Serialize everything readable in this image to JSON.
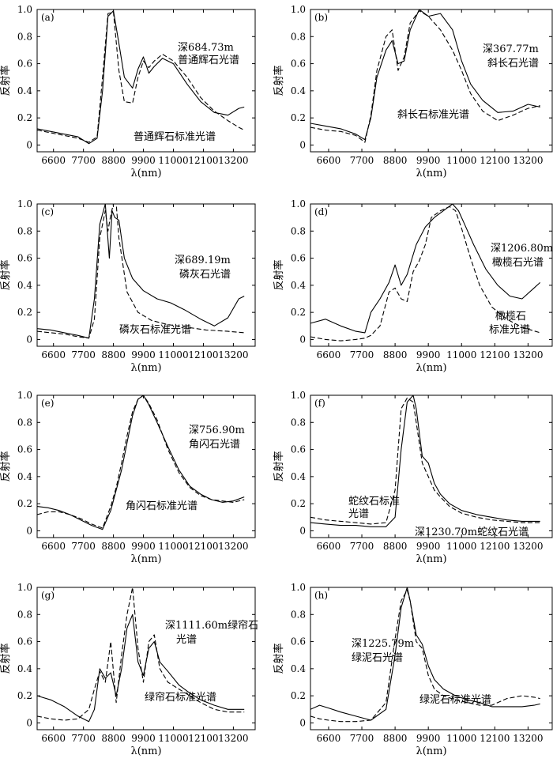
{
  "figure": {
    "x_ticks": [
      "6600",
      "7700",
      "8800",
      "9900",
      "11000",
      "12100",
      "13200"
    ],
    "x_tick_values": [
      6600,
      7700,
      8800,
      9900,
      11000,
      12100,
      13200
    ],
    "y_ticks": [
      "0",
      "0.2",
      "0.4",
      "0.6",
      "0.8",
      "1.0"
    ],
    "y_tick_values": [
      0,
      0.2,
      0.4,
      0.6,
      0.8,
      1.0
    ],
    "xlim": [
      6000,
      14000
    ],
    "ylim": [
      -0.05,
      1.0
    ],
    "xlabel": "λ(nm)",
    "ylabel": "反射率"
  },
  "chart_data": [
    {
      "type": "line",
      "panel_label": "(a)",
      "xlabel": "λ(nm)",
      "ylabel": "反射率",
      "annotations": [
        "深684.73m",
        "普通辉石光谱",
        "普通辉石标准光谱"
      ],
      "series": [
        {
          "style": "solid",
          "x": [
            6000,
            6500,
            7000,
            7500,
            7900,
            8200,
            8400,
            8600,
            8800,
            9000,
            9200,
            9500,
            9700,
            9900,
            10100,
            10300,
            10600,
            11000,
            11500,
            12000,
            12500,
            13000,
            13400,
            13600
          ],
          "y": [
            0.12,
            0.1,
            0.08,
            0.06,
            0.01,
            0.05,
            0.4,
            0.95,
            0.99,
            0.75,
            0.5,
            0.42,
            0.56,
            0.65,
            0.53,
            0.58,
            0.64,
            0.6,
            0.45,
            0.32,
            0.24,
            0.22,
            0.27,
            0.28
          ]
        },
        {
          "style": "dashed",
          "x": [
            6000,
            6500,
            7000,
            7500,
            7900,
            8200,
            8400,
            8600,
            8800,
            9000,
            9200,
            9500,
            9700,
            9900,
            10100,
            10300,
            10600,
            11000,
            11500,
            12000,
            12500,
            13000,
            13400,
            13600
          ],
          "y": [
            0.11,
            0.09,
            0.07,
            0.05,
            0.02,
            0.06,
            0.5,
            0.97,
            0.98,
            0.55,
            0.32,
            0.31,
            0.5,
            0.62,
            0.57,
            0.62,
            0.67,
            0.62,
            0.5,
            0.35,
            0.25,
            0.18,
            0.13,
            0.11
          ]
        }
      ]
    },
    {
      "type": "line",
      "panel_label": "(b)",
      "xlabel": "λ(nm)",
      "ylabel": "反射率",
      "annotations": [
        "深367.77m",
        "斜长石光谱",
        "斜长石标准光谱"
      ],
      "series": [
        {
          "style": "solid",
          "x": [
            6000,
            6500,
            7000,
            7500,
            7800,
            8000,
            8200,
            8500,
            8700,
            8900,
            9100,
            9300,
            9600,
            9900,
            10300,
            10700,
            11000,
            11300,
            11700,
            12200,
            12700,
            13200,
            13600
          ],
          "y": [
            0.16,
            0.14,
            0.12,
            0.08,
            0.04,
            0.2,
            0.5,
            0.7,
            0.77,
            0.6,
            0.62,
            0.85,
            1.0,
            0.95,
            0.97,
            0.85,
            0.62,
            0.45,
            0.33,
            0.24,
            0.25,
            0.3,
            0.28
          ]
        },
        {
          "style": "dashed",
          "x": [
            6000,
            6500,
            7000,
            7500,
            7800,
            8000,
            8200,
            8500,
            8700,
            8900,
            9100,
            9300,
            9600,
            9900,
            10300,
            10700,
            11000,
            11300,
            11700,
            12200,
            12700,
            13200,
            13600
          ],
          "y": [
            0.13,
            0.11,
            0.1,
            0.07,
            0.02,
            0.22,
            0.55,
            0.8,
            0.85,
            0.55,
            0.65,
            0.9,
            0.99,
            0.95,
            0.85,
            0.7,
            0.55,
            0.38,
            0.25,
            0.18,
            0.22,
            0.27,
            0.29
          ]
        }
      ]
    },
    {
      "type": "line",
      "panel_label": "(c)",
      "xlabel": "λ(nm)",
      "ylabel": "反射率",
      "annotations": [
        "深689.19m",
        "磷灰石光谱",
        "磷灰石标准光谱"
      ],
      "series": [
        {
          "style": "solid",
          "x": [
            6000,
            6500,
            7000,
            7500,
            7900,
            8100,
            8300,
            8500,
            8650,
            8750,
            8850,
            9000,
            9200,
            9500,
            9900,
            10400,
            10900,
            11400,
            12000,
            12500,
            13000,
            13400,
            13600
          ],
          "y": [
            0.08,
            0.07,
            0.05,
            0.03,
            0.01,
            0.3,
            0.85,
            1.0,
            0.6,
            0.95,
            0.9,
            0.88,
            0.6,
            0.45,
            0.36,
            0.3,
            0.27,
            0.22,
            0.15,
            0.1,
            0.16,
            0.3,
            0.32
          ]
        },
        {
          "style": "dashed",
          "x": [
            6000,
            6500,
            7000,
            7500,
            7900,
            8100,
            8300,
            8500,
            8600,
            8700,
            8800,
            8900,
            9000,
            9300,
            9700,
            10200,
            10800,
            11500,
            12200,
            13000,
            13600
          ],
          "y": [
            0.06,
            0.05,
            0.04,
            0.02,
            0.01,
            0.15,
            0.75,
            0.95,
            0.8,
            0.92,
            1.0,
            1.0,
            0.75,
            0.35,
            0.2,
            0.14,
            0.11,
            0.09,
            0.07,
            0.06,
            0.05
          ]
        }
      ]
    },
    {
      "type": "line",
      "panel_label": "(d)",
      "xlabel": "λ(nm)",
      "ylabel": "反射率",
      "annotations": [
        "深1206.80m",
        "橄榄石光谱",
        "橄榄石",
        "标准光谱"
      ],
      "series": [
        {
          "style": "solid",
          "x": [
            6000,
            6500,
            7000,
            7500,
            7800,
            8000,
            8300,
            8600,
            8800,
            9000,
            9200,
            9500,
            9800,
            10100,
            10400,
            10700,
            10900,
            11100,
            11400,
            11800,
            12200,
            12600,
            13000,
            13400,
            13600
          ],
          "y": [
            0.12,
            0.15,
            0.1,
            0.06,
            0.05,
            0.2,
            0.3,
            0.42,
            0.55,
            0.4,
            0.48,
            0.7,
            0.83,
            0.9,
            0.95,
            1.0,
            0.95,
            0.85,
            0.7,
            0.52,
            0.4,
            0.32,
            0.3,
            0.38,
            0.42
          ]
        },
        {
          "style": "dashed",
          "x": [
            6000,
            6500,
            7000,
            7500,
            7800,
            8000,
            8300,
            8600,
            8800,
            9000,
            9200,
            9400,
            9600,
            9800,
            10000,
            10300,
            10600,
            10800,
            11000,
            11300,
            11600,
            12000,
            12500,
            13000,
            13600
          ],
          "y": [
            0.02,
            0.0,
            -0.01,
            0.0,
            0.01,
            0.03,
            0.1,
            0.35,
            0.38,
            0.3,
            0.28,
            0.5,
            0.58,
            0.7,
            0.9,
            0.95,
            0.98,
            0.95,
            0.82,
            0.6,
            0.4,
            0.24,
            0.15,
            0.09,
            0.05
          ]
        }
      ]
    },
    {
      "type": "line",
      "panel_label": "(e)",
      "xlabel": "λ(nm)",
      "ylabel": "反射率",
      "annotations": [
        "深756.90m",
        "角闪石光谱",
        "角闪石标准光谱"
      ],
      "series": [
        {
          "style": "solid",
          "x": [
            6000,
            6400,
            6800,
            7200,
            7600,
            8000,
            8400,
            8700,
            8900,
            9100,
            9300,
            9500,
            9700,
            9900,
            10100,
            10400,
            10800,
            11200,
            11600,
            12000,
            12400,
            12800,
            13200,
            13600
          ],
          "y": [
            0.18,
            0.17,
            0.15,
            0.12,
            0.08,
            0.04,
            0.01,
            0.15,
            0.3,
            0.45,
            0.65,
            0.85,
            0.97,
            1.0,
            0.93,
            0.8,
            0.62,
            0.45,
            0.33,
            0.27,
            0.23,
            0.21,
            0.22,
            0.25
          ]
        },
        {
          "style": "dashed",
          "x": [
            6000,
            6400,
            6800,
            7200,
            7600,
            8000,
            8400,
            8700,
            8900,
            9100,
            9300,
            9500,
            9700,
            9900,
            10100,
            10400,
            10800,
            11200,
            11600,
            12000,
            12400,
            12800,
            13200,
            13600
          ],
          "y": [
            0.12,
            0.14,
            0.14,
            0.12,
            0.09,
            0.05,
            0.02,
            0.18,
            0.32,
            0.5,
            0.7,
            0.88,
            0.97,
            1.0,
            0.94,
            0.82,
            0.6,
            0.43,
            0.32,
            0.26,
            0.23,
            0.22,
            0.21,
            0.23
          ]
        }
      ]
    },
    {
      "type": "line",
      "panel_label": "(f)",
      "xlabel": "λ(nm)",
      "ylabel": "反射率",
      "annotations": [
        "蛇纹石标准",
        "光谱",
        "深1230.70m蛇纹石光谱"
      ],
      "series": [
        {
          "style": "solid",
          "x": [
            6000,
            6500,
            7000,
            7500,
            8000,
            8500,
            8800,
            9000,
            9200,
            9400,
            9500,
            9700,
            9900,
            10100,
            10300,
            10600,
            11000,
            11500,
            12000,
            12500,
            13000,
            13400,
            13600
          ],
          "y": [
            0.06,
            0.05,
            0.04,
            0.04,
            0.03,
            0.03,
            0.1,
            0.6,
            0.95,
            1.0,
            0.9,
            0.55,
            0.5,
            0.35,
            0.27,
            0.2,
            0.15,
            0.12,
            0.1,
            0.08,
            0.07,
            0.07,
            0.07
          ]
        },
        {
          "style": "dashed",
          "x": [
            6000,
            6500,
            7000,
            7500,
            8000,
            8500,
            8800,
            9000,
            9200,
            9400,
            9500,
            9700,
            9900,
            10100,
            10300,
            10600,
            11000,
            11500,
            12000,
            12500,
            13000,
            13400,
            13600
          ],
          "y": [
            0.1,
            0.08,
            0.07,
            0.06,
            0.05,
            0.06,
            0.3,
            0.9,
            0.98,
            0.95,
            0.8,
            0.5,
            0.4,
            0.3,
            0.25,
            0.18,
            0.13,
            0.1,
            0.08,
            0.07,
            0.06,
            0.06,
            0.06
          ]
        }
      ]
    },
    {
      "type": "line",
      "panel_label": "(g)",
      "xlabel": "λ(nm)",
      "ylabel": "反射率",
      "annotations": [
        "深1111.60m绿帘石",
        "光谱",
        "绿帘石标准光谱"
      ],
      "series": [
        {
          "style": "solid",
          "x": [
            6000,
            6500,
            7000,
            7500,
            7900,
            8100,
            8300,
            8500,
            8700,
            8900,
            9100,
            9300,
            9500,
            9700,
            9900,
            10100,
            10300,
            10500,
            10800,
            11200,
            11600,
            12000,
            12500,
            13000,
            13600
          ],
          "y": [
            0.2,
            0.17,
            0.12,
            0.05,
            0.01,
            0.1,
            0.4,
            0.33,
            0.37,
            0.2,
            0.4,
            0.7,
            0.8,
            0.45,
            0.35,
            0.55,
            0.6,
            0.45,
            0.38,
            0.28,
            0.22,
            0.17,
            0.13,
            0.1,
            0.1
          ]
        },
        {
          "style": "dashed",
          "x": [
            6000,
            6500,
            7000,
            7500,
            7900,
            8100,
            8300,
            8500,
            8700,
            8900,
            9100,
            9300,
            9500,
            9700,
            9900,
            10100,
            10300,
            10500,
            10800,
            11200,
            11600,
            12000,
            12500,
            13000,
            13600
          ],
          "y": [
            0.05,
            0.03,
            0.02,
            0.03,
            0.1,
            0.25,
            0.38,
            0.3,
            0.6,
            0.15,
            0.5,
            0.8,
            1.0,
            0.55,
            0.3,
            0.6,
            0.65,
            0.4,
            0.3,
            0.25,
            0.2,
            0.15,
            0.1,
            0.08,
            0.08
          ]
        }
      ]
    },
    {
      "type": "line",
      "panel_label": "(h)",
      "xlabel": "λ(nm)",
      "ylabel": "反射率",
      "annotations": [
        "深1225.79m",
        "绿泥石光谱",
        "绿泥石标准光谱"
      ],
      "series": [
        {
          "style": "solid",
          "x": [
            6000,
            6300,
            6600,
            7000,
            7500,
            8000,
            8500,
            8800,
            9000,
            9200,
            9300,
            9500,
            9700,
            9900,
            10100,
            10400,
            10800,
            11200,
            11600,
            12000,
            12500,
            13000,
            13400,
            13600
          ],
          "y": [
            0.1,
            0.13,
            0.11,
            0.08,
            0.05,
            0.02,
            0.1,
            0.5,
            0.85,
            1.0,
            0.9,
            0.65,
            0.58,
            0.42,
            0.32,
            0.25,
            0.2,
            0.17,
            0.15,
            0.12,
            0.12,
            0.12,
            0.13,
            0.14
          ]
        },
        {
          "style": "dashed",
          "x": [
            6000,
            6300,
            6600,
            7000,
            7500,
            8000,
            8500,
            8800,
            9000,
            9200,
            9300,
            9500,
            9700,
            9900,
            10100,
            10400,
            10800,
            11200,
            11600,
            12000,
            12500,
            13000,
            13400,
            13600
          ],
          "y": [
            0.05,
            0.03,
            0.02,
            0.01,
            0.01,
            0.02,
            0.15,
            0.62,
            0.9,
            0.98,
            0.9,
            0.6,
            0.55,
            0.35,
            0.25,
            0.2,
            0.17,
            0.15,
            0.13,
            0.13,
            0.18,
            0.2,
            0.19,
            0.18
          ]
        }
      ]
    }
  ]
}
